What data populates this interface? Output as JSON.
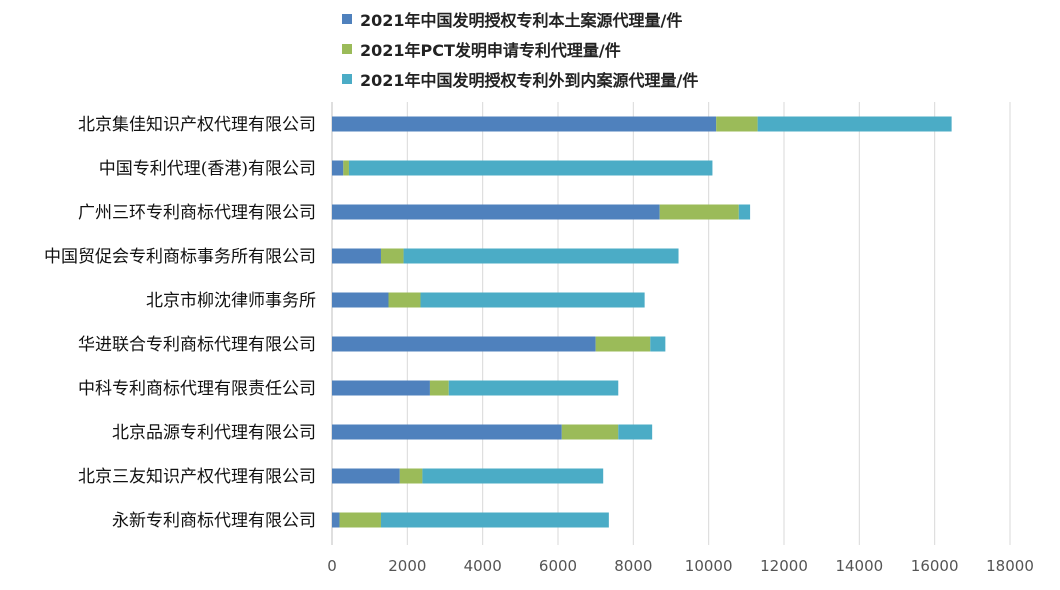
{
  "chart_data": {
    "type": "bar",
    "orientation": "horizontal",
    "stacked": true,
    "title": "",
    "xlabel": "",
    "ylabel": "",
    "xlim": [
      0,
      18000
    ],
    "xticks": [
      0,
      2000,
      4000,
      6000,
      8000,
      10000,
      12000,
      14000,
      16000,
      18000
    ],
    "grid": "vertical",
    "legend_position": "top",
    "categories": [
      "北京集佳知识产权代理有限公司",
      "中国专利代理(香港)有限公司",
      "广州三环专利商标代理有限公司",
      "中国贸促会专利商标事务所有限公司",
      "北京市柳沈律师事务所",
      "华进联合专利商标代理有限公司",
      "中科专利商标代理有限责任公司",
      "北京品源专利代理有限公司",
      "北京三友知识产权代理有限公司",
      "永新专利商标代理有限公司"
    ],
    "series": [
      {
        "name": "2021年中国发明授权专利本土案源代理量/件",
        "color": "#4f81bd",
        "values": [
          10200,
          300,
          8700,
          1300,
          1500,
          7000,
          2600,
          6100,
          1800,
          200
        ]
      },
      {
        "name": "2021年PCT发明申请专利代理量/件",
        "color": "#9bbb59",
        "values": [
          1100,
          150,
          2100,
          600,
          850,
          1450,
          500,
          1500,
          600,
          1100
        ]
      },
      {
        "name": "2021年中国发明授权专利外到内案源代理量/件",
        "color": "#4bacc6",
        "values": [
          5150,
          9650,
          300,
          7300,
          5950,
          400,
          4500,
          900,
          4800,
          6050
        ]
      }
    ]
  }
}
